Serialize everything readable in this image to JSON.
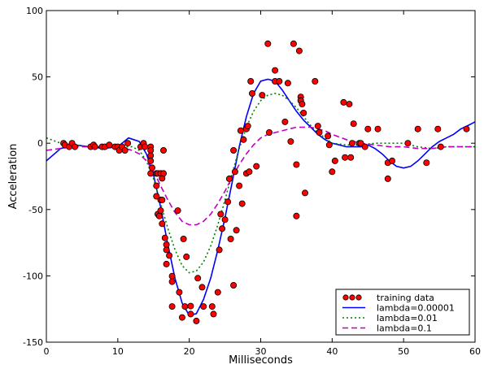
{
  "chart_data": {
    "type": "scatter",
    "title": "",
    "xlabel": "Milliseconds",
    "ylabel": "Acceleration",
    "xlim": [
      0,
      60
    ],
    "ylim": [
      -150,
      100
    ],
    "xticks": [
      0,
      10,
      20,
      30,
      40,
      50,
      60
    ],
    "yticks": [
      -150,
      -100,
      -50,
      0,
      50,
      100
    ],
    "xtick_labels": [
      "0",
      "10",
      "20",
      "30",
      "40",
      "50",
      "60"
    ],
    "ytick_labels": [
      "-150",
      "-100",
      "-50",
      "0",
      "50",
      "100"
    ],
    "grid": false,
    "legend_position": "bottom-right",
    "scatter": {
      "name": "training data",
      "color": "#ff0000",
      "points": [
        [
          2.4,
          0
        ],
        [
          2.6,
          -1.3
        ],
        [
          3.2,
          -2.7
        ],
        [
          3.6,
          0
        ],
        [
          4.0,
          -2.7
        ],
        [
          6.2,
          -2.7
        ],
        [
          6.6,
          -1.3
        ],
        [
          6.8,
          -2.7
        ],
        [
          7.8,
          -2.7
        ],
        [
          8.2,
          -2.7
        ],
        [
          8.8,
          -1.3
        ],
        [
          9.6,
          -2.7
        ],
        [
          10.0,
          -2.7
        ],
        [
          10.2,
          -5.4
        ],
        [
          10.6,
          -2.7
        ],
        [
          11.0,
          -5.4
        ],
        [
          11.4,
          0
        ],
        [
          13.2,
          -2.7
        ],
        [
          13.6,
          0
        ],
        [
          13.8,
          -2.7
        ],
        [
          14.6,
          -2.7
        ],
        [
          14.6,
          -5.4
        ],
        [
          14.6,
          -9.3
        ],
        [
          14.6,
          -13.3
        ],
        [
          14.6,
          -22.8
        ],
        [
          14.8,
          -18.5
        ],
        [
          15.4,
          -22.8
        ],
        [
          15.4,
          -32.1
        ],
        [
          15.4,
          -40
        ],
        [
          15.6,
          -22.8
        ],
        [
          15.6,
          -53.5
        ],
        [
          15.8,
          -54.9
        ],
        [
          16.0,
          -42.8
        ],
        [
          16.0,
          -50.8
        ],
        [
          16.0,
          -22.8
        ],
        [
          16.2,
          -26.5
        ],
        [
          16.2,
          -42.8
        ],
        [
          16.2,
          -60.7
        ],
        [
          16.4,
          -5.4
        ],
        [
          16.4,
          -22.8
        ],
        [
          16.6,
          -71.4
        ],
        [
          16.8,
          -76.5
        ],
        [
          16.8,
          -80.4
        ],
        [
          16.8,
          -91.1
        ],
        [
          17.2,
          -84.7
        ],
        [
          17.6,
          -123.1
        ],
        [
          17.6,
          -104.4
        ],
        [
          17.6,
          -100.2
        ],
        [
          18.4,
          -50.8
        ],
        [
          18.6,
          -112.4
        ],
        [
          19.0,
          -131.4
        ],
        [
          19.2,
          -72.2
        ],
        [
          19.4,
          -123.1
        ],
        [
          19.6,
          -85.6
        ],
        [
          20.2,
          -128.8
        ],
        [
          20.2,
          -122.8
        ],
        [
          21.0,
          -134.0
        ],
        [
          21.2,
          -101.8
        ],
        [
          21.8,
          -108.6
        ],
        [
          22.0,
          -123.1
        ],
        [
          23.2,
          -123.1
        ],
        [
          23.4,
          -128.8
        ],
        [
          24.0,
          -112.4
        ],
        [
          24.2,
          -80.4
        ],
        [
          24.4,
          -53.5
        ],
        [
          24.6,
          -64.4
        ],
        [
          25.0,
          -57.6
        ],
        [
          25.4,
          -44.2
        ],
        [
          25.6,
          -26.8
        ],
        [
          25.8,
          -72.2
        ],
        [
          26.2,
          -5.4
        ],
        [
          26.2,
          -107.1
        ],
        [
          26.4,
          -21.5
        ],
        [
          26.6,
          -65.6
        ],
        [
          27.0,
          -32.1
        ],
        [
          27.2,
          9.5
        ],
        [
          27.4,
          -45.6
        ],
        [
          27.6,
          2.7
        ],
        [
          28.0,
          10.7
        ],
        [
          28.0,
          -22.8
        ],
        [
          28.2,
          12.9
        ],
        [
          28.4,
          -21.5
        ],
        [
          28.6,
          46.7
        ],
        [
          28.8,
          37.5
        ],
        [
          29.4,
          -17.4
        ],
        [
          30.2,
          36.2
        ],
        [
          31.0,
          75.0
        ],
        [
          31.2,
          8.1
        ],
        [
          32.0,
          46.7
        ],
        [
          32.0,
          54.9
        ],
        [
          32.6,
          46.7
        ],
        [
          33.4,
          16.1
        ],
        [
          33.8,
          45.3
        ],
        [
          34.2,
          1.3
        ],
        [
          34.6,
          75.0
        ],
        [
          35.0,
          -16.1
        ],
        [
          35.0,
          -54.9
        ],
        [
          35.4,
          69.6
        ],
        [
          35.6,
          34.9
        ],
        [
          35.6,
          32.1
        ],
        [
          35.8,
          29.5
        ],
        [
          36.0,
          22.8
        ],
        [
          36.2,
          -37.5
        ],
        [
          37.6,
          46.7
        ],
        [
          38.0,
          12.9
        ],
        [
          38.2,
          8.1
        ],
        [
          39.4,
          5.4
        ],
        [
          39.6,
          -1.3
        ],
        [
          40.0,
          -21.5
        ],
        [
          40.4,
          -13.3
        ],
        [
          41.6,
          30.8
        ],
        [
          41.8,
          -10.7
        ],
        [
          42.4,
          29.5
        ],
        [
          42.6,
          -10.7
        ],
        [
          42.8,
          0
        ],
        [
          43.0,
          14.7
        ],
        [
          43.8,
          0
        ],
        [
          44.0,
          0
        ],
        [
          44.6,
          -2.7
        ],
        [
          45.0,
          10.7
        ],
        [
          46.4,
          10.7
        ],
        [
          47.8,
          -14.7
        ],
        [
          47.8,
          -26.8
        ],
        [
          48.4,
          -13.3
        ],
        [
          50.6,
          0
        ],
        [
          52.0,
          10.7
        ],
        [
          53.2,
          -14.7
        ],
        [
          54.8,
          10.7
        ],
        [
          55.2,
          -2.7
        ],
        [
          58.8,
          10.7
        ]
      ]
    },
    "series": [
      {
        "name": "lambda=0.00001",
        "color": "#0000ff",
        "style": "solid",
        "x": [
          0,
          2,
          4,
          6,
          8,
          10,
          11.5,
          13,
          14,
          15,
          16,
          17,
          18,
          19,
          20,
          21,
          22,
          23,
          24,
          25,
          26,
          27,
          28,
          29,
          30,
          31,
          32,
          33,
          34,
          35,
          36,
          37,
          38,
          39,
          40,
          41,
          42,
          43,
          44,
          45,
          46,
          47,
          48,
          49,
          50,
          51,
          52,
          53,
          54,
          55,
          56,
          57,
          58,
          59,
          60
        ],
        "y": [
          -13.3,
          -4.0,
          -1.3,
          -2.7,
          -4.0,
          -2.7,
          4.0,
          1.3,
          -8.0,
          -24.1,
          -48.2,
          -76.3,
          -101.8,
          -120.5,
          -129.8,
          -128.5,
          -117.8,
          -101.8,
          -80.4,
          -56.2,
          -29.5,
          -2.7,
          20.1,
          37.5,
          46.8,
          48.2,
          46.8,
          40.2,
          32.1,
          24.1,
          17.4,
          12.1,
          6.7,
          2.7,
          0,
          -1.3,
          -2.7,
          -2.7,
          -2.7,
          -1.3,
          -4.0,
          -8.0,
          -13.3,
          -17.4,
          -18.7,
          -17.4,
          -13.3,
          -8.0,
          -2.7,
          1.3,
          4.0,
          6.7,
          10.7,
          13.3,
          16.1
        ]
      },
      {
        "name": "lambda=0.01",
        "color": "#008000",
        "style": "dotted",
        "x": [
          0,
          2,
          4,
          6,
          8,
          10,
          12,
          13,
          14,
          15,
          16,
          17,
          18,
          19,
          20,
          21,
          22,
          23,
          24,
          25,
          26,
          27,
          28,
          29,
          30,
          31,
          32,
          33,
          34,
          35,
          36,
          37,
          38,
          39,
          40,
          42,
          44,
          46,
          48,
          50,
          52,
          54,
          56,
          58,
          60
        ],
        "y": [
          4.0,
          0,
          -1.3,
          -2.7,
          -2.7,
          -2.7,
          -2.7,
          -5.4,
          -13.3,
          -26.8,
          -45.5,
          -64.2,
          -80.3,
          -92.3,
          -97.7,
          -96.3,
          -89.6,
          -77.6,
          -61.5,
          -42.8,
          -22.8,
          -4.0,
          12.1,
          24.1,
          32.1,
          36.2,
          37.5,
          36.2,
          32.1,
          26.8,
          20.1,
          13.3,
          8.0,
          4.0,
          0,
          -1.3,
          -1.3,
          0,
          0,
          0,
          -2.7,
          -4.0,
          -2.7,
          -2.7,
          -2.7
        ]
      },
      {
        "name": "lambda=0.1",
        "color": "#bf00bf",
        "style": "dashed",
        "x": [
          0,
          2,
          4,
          6,
          8,
          10,
          11,
          12,
          13,
          14,
          15,
          16,
          17,
          18,
          19,
          20,
          21,
          22,
          23,
          24,
          25,
          26,
          27,
          28,
          29,
          30,
          31,
          32,
          33,
          34,
          35,
          36,
          37,
          38,
          39,
          40,
          42,
          44,
          46,
          48,
          50,
          52,
          54,
          56,
          58,
          60
        ],
        "y": [
          -5.4,
          -4.0,
          -2.7,
          -2.7,
          -2.7,
          -2.7,
          -4.0,
          -5.4,
          -8.0,
          -13.3,
          -21.4,
          -32.1,
          -42.8,
          -52.2,
          -58.9,
          -61.5,
          -61.5,
          -58.9,
          -53.5,
          -45.5,
          -36.1,
          -25.4,
          -16.1,
          -8.0,
          -1.3,
          4.0,
          6.7,
          8.0,
          9.4,
          10.7,
          12.1,
          12.1,
          12.1,
          10.7,
          9.4,
          6.7,
          2.7,
          0,
          -1.3,
          -2.7,
          -2.7,
          -4.0,
          -4.0,
          -2.7,
          -2.7,
          -2.7
        ]
      }
    ],
    "legend": [
      {
        "label": "training data",
        "kind": "marker"
      },
      {
        "label": "lambda=0.00001",
        "kind": "line"
      },
      {
        "label": "lambda=0.01",
        "kind": "line"
      },
      {
        "label": "lambda=0.1",
        "kind": "line"
      }
    ]
  }
}
